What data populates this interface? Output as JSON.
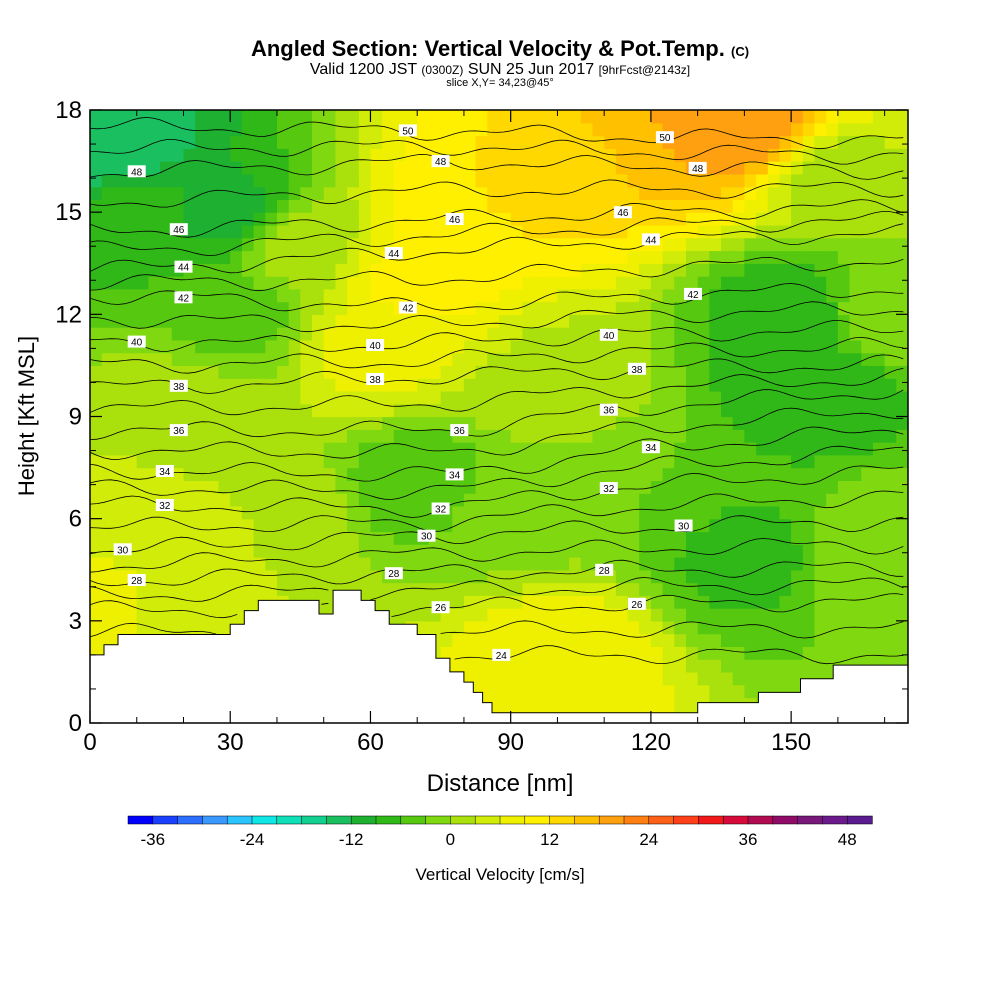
{
  "header": {
    "title": "Angled Section: Vertical Velocity & Pot.Temp.",
    "title_tag": "(C)",
    "valid_prefix": "Valid 1200 JST",
    "valid_utc": "(0300Z)",
    "valid_date": "SUN 25 Jun 2017",
    "valid_fcst": "[9hrFcst@2143z]",
    "slice": "slice X,Y= 34,23@45°"
  },
  "chart_data": {
    "type": "heatmap",
    "xlabel": "Distance [nm]",
    "ylabel": "Height [Kft MSL]",
    "xlim": [
      0,
      175
    ],
    "ylim": [
      0,
      18
    ],
    "x_ticks": [
      0,
      30,
      60,
      90,
      120,
      150
    ],
    "y_ticks": [
      0,
      3,
      6,
      9,
      12,
      15,
      18
    ],
    "terrain": [
      [
        0,
        2
      ],
      [
        3,
        2
      ],
      [
        3,
        2.3
      ],
      [
        6,
        2.3
      ],
      [
        6,
        2.6
      ],
      [
        30,
        2.6
      ],
      [
        30,
        2.9
      ],
      [
        33,
        2.9
      ],
      [
        33,
        3.3
      ],
      [
        36,
        3.3
      ],
      [
        36,
        3.6
      ],
      [
        49,
        3.6
      ],
      [
        49,
        3.2
      ],
      [
        52,
        3.2
      ],
      [
        52,
        3.9
      ],
      [
        58,
        3.9
      ],
      [
        58,
        3.6
      ],
      [
        61,
        3.6
      ],
      [
        61,
        3.3
      ],
      [
        64,
        3.3
      ],
      [
        64,
        2.9
      ],
      [
        70,
        2.9
      ],
      [
        70,
        2.6
      ],
      [
        74,
        2.6
      ],
      [
        74,
        1.9
      ],
      [
        77,
        1.9
      ],
      [
        77,
        1.5
      ],
      [
        80,
        1.5
      ],
      [
        80,
        1.2
      ],
      [
        82,
        1.2
      ],
      [
        82,
        0.9
      ],
      [
        84,
        0.9
      ],
      [
        84,
        0.6
      ],
      [
        86,
        0.6
      ],
      [
        86,
        0.3
      ],
      [
        88,
        0.3
      ],
      [
        88,
        0.3
      ],
      [
        102,
        0.3
      ],
      [
        102,
        0.3
      ],
      [
        113,
        0.3
      ],
      [
        113,
        0.3
      ],
      [
        130,
        0.3
      ],
      [
        130,
        0.6
      ],
      [
        143,
        0.6
      ],
      [
        143,
        0.9
      ],
      [
        152,
        0.9
      ],
      [
        152,
        1.3
      ],
      [
        159,
        1.3
      ],
      [
        159,
        1.7
      ],
      [
        175,
        1.7
      ]
    ],
    "theta_contour_labels": [
      {
        "value": "50",
        "x": 68,
        "y": 17.4
      },
      {
        "value": "50",
        "x": 123,
        "y": 17.2
      },
      {
        "value": "48",
        "x": 10,
        "y": 16.2
      },
      {
        "value": "48",
        "x": 75,
        "y": 16.5
      },
      {
        "value": "48",
        "x": 130,
        "y": 16.3
      },
      {
        "value": "46",
        "x": 19,
        "y": 14.5
      },
      {
        "value": "46",
        "x": 78,
        "y": 14.8
      },
      {
        "value": "46",
        "x": 114,
        "y": 15.0
      },
      {
        "value": "44",
        "x": 20,
        "y": 13.4
      },
      {
        "value": "44",
        "x": 65,
        "y": 13.8
      },
      {
        "value": "44",
        "x": 120,
        "y": 14.2
      },
      {
        "value": "42",
        "x": 20,
        "y": 12.5
      },
      {
        "value": "42",
        "x": 68,
        "y": 12.2
      },
      {
        "value": "42",
        "x": 129,
        "y": 12.6
      },
      {
        "value": "40",
        "x": 10,
        "y": 11.2
      },
      {
        "value": "40",
        "x": 61,
        "y": 11.1
      },
      {
        "value": "40",
        "x": 111,
        "y": 11.4
      },
      {
        "value": "38",
        "x": 19,
        "y": 9.9
      },
      {
        "value": "38",
        "x": 61,
        "y": 10.1
      },
      {
        "value": "38",
        "x": 117,
        "y": 10.4
      },
      {
        "value": "36",
        "x": 19,
        "y": 8.6
      },
      {
        "value": "36",
        "x": 79,
        "y": 8.6
      },
      {
        "value": "36",
        "x": 111,
        "y": 9.2
      },
      {
        "value": "34",
        "x": 16,
        "y": 7.4
      },
      {
        "value": "34",
        "x": 78,
        "y": 7.3
      },
      {
        "value": "34",
        "x": 120,
        "y": 8.1
      },
      {
        "value": "32",
        "x": 16,
        "y": 6.4
      },
      {
        "value": "32",
        "x": 75,
        "y": 6.3
      },
      {
        "value": "32",
        "x": 111,
        "y": 6.9
      },
      {
        "value": "30",
        "x": 7,
        "y": 5.1
      },
      {
        "value": "30",
        "x": 72,
        "y": 5.5
      },
      {
        "value": "30",
        "x": 127,
        "y": 5.8
      },
      {
        "value": "28",
        "x": 10,
        "y": 4.2
      },
      {
        "value": "28",
        "x": 65,
        "y": 4.4
      },
      {
        "value": "28",
        "x": 110,
        "y": 4.5
      },
      {
        "value": "26",
        "x": 75,
        "y": 3.4
      },
      {
        "value": "26",
        "x": 117,
        "y": 3.5
      },
      {
        "value": "24",
        "x": 88,
        "y": 2.0
      }
    ],
    "theta_levels": [
      24,
      25,
      26,
      27,
      28,
      29,
      30,
      31,
      32,
      33,
      34,
      35,
      36,
      37,
      38,
      39,
      40,
      41,
      42,
      43,
      44,
      45,
      46,
      47,
      48,
      49,
      50
    ],
    "colorbar": {
      "label": "Vertical Velocity [cm/s]",
      "tick_labels": [
        "-36",
        "-24",
        "-12",
        "0",
        "12",
        "24",
        "36",
        "48"
      ],
      "tick_values": [
        -36,
        -24,
        -12,
        0,
        12,
        24,
        36,
        48
      ],
      "min": -39,
      "max": 51,
      "step": 3,
      "colors": [
        "#0000ff",
        "#1a40ff",
        "#2c6fff",
        "#3a98ff",
        "#2cc4ff",
        "#10e6e6",
        "#10e0b8",
        "#14d090",
        "#1ac060",
        "#1eb030",
        "#30b818",
        "#56c810",
        "#80d810",
        "#aae00c",
        "#d0ec08",
        "#eef000",
        "#fff000",
        "#ffd800",
        "#ffc000",
        "#ffa010",
        "#ff8010",
        "#ff6018",
        "#ff4018",
        "#f01818",
        "#d80a3a",
        "#b00a50",
        "#900a68",
        "#78187a",
        "#6a1a8a",
        "#5a1a90"
      ]
    },
    "velocity_field": [
      {
        "x": 5,
        "y": 17,
        "v": -15
      },
      {
        "x": 10,
        "y": 15,
        "v": -8
      },
      {
        "x": 30,
        "y": 15,
        "v": -10
      },
      {
        "x": 32,
        "y": 12,
        "v": -4
      },
      {
        "x": 45,
        "y": 14,
        "v": 2
      },
      {
        "x": 60,
        "y": 11,
        "v": 7
      },
      {
        "x": 70,
        "y": 13,
        "v": 10
      },
      {
        "x": 80,
        "y": 15,
        "v": 12
      },
      {
        "x": 100,
        "y": 16,
        "v": 13
      },
      {
        "x": 125,
        "y": 17.3,
        "v": 18
      },
      {
        "x": 140,
        "y": 17.6,
        "v": 21
      },
      {
        "x": 160,
        "y": 16,
        "v": 2
      },
      {
        "x": 150,
        "y": 12,
        "v": -8
      },
      {
        "x": 155,
        "y": 10,
        "v": -9
      },
      {
        "x": 140,
        "y": 5,
        "v": -7
      },
      {
        "x": 120,
        "y": 7,
        "v": -3
      },
      {
        "x": 70,
        "y": 7,
        "v": -5
      },
      {
        "x": 100,
        "y": 2,
        "v": 9
      },
      {
        "x": 20,
        "y": 9,
        "v": 2
      },
      {
        "x": 10,
        "y": 6,
        "v": 4
      },
      {
        "x": 3,
        "y": 3.5,
        "v": 8
      },
      {
        "x": 40,
        "y": 6,
        "v": 3
      },
      {
        "x": 90,
        "y": 6,
        "v": -1
      },
      {
        "x": 170,
        "y": 5,
        "v": 0
      },
      {
        "x": 170,
        "y": 12,
        "v": -1
      },
      {
        "x": 100,
        "y": 10,
        "v": 2
      },
      {
        "x": 20,
        "y": 3.5,
        "v": 3
      }
    ]
  }
}
